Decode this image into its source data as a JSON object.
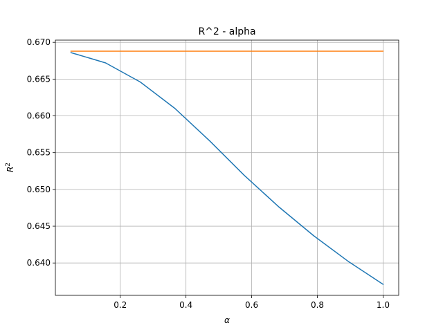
{
  "chart_data": {
    "type": "line",
    "title": "R^2 - alpha",
    "xlabel": "α",
    "ylabel_base": "R",
    "ylabel_sup": "2",
    "xlim": [
      0.0025,
      1.0475
    ],
    "ylim": [
      0.6356,
      0.6703
    ],
    "xticks": [
      0.2,
      0.4,
      0.6,
      0.8,
      1.0
    ],
    "xtick_labels": [
      "0.2",
      "0.4",
      "0.6",
      "0.8",
      "1.0"
    ],
    "yticks": [
      0.64,
      0.645,
      0.65,
      0.655,
      0.66,
      0.665,
      0.67
    ],
    "ytick_labels": [
      "0.640",
      "0.645",
      "0.650",
      "0.655",
      "0.660",
      "0.665",
      "0.670"
    ],
    "grid": true,
    "series": [
      {
        "color": "#1f77b4",
        "x": [
          0.05,
          0.1556,
          0.2611,
          0.3667,
          0.4722,
          0.5778,
          0.6833,
          0.7889,
          0.8944,
          1.0
        ],
        "y": [
          0.6686,
          0.6672,
          0.6646,
          0.661,
          0.6566,
          0.6519,
          0.6476,
          0.6437,
          0.6402,
          0.6371
        ]
      },
      {
        "color": "#ff7f0e",
        "x": [
          0.05,
          1.0
        ],
        "y": [
          0.6688,
          0.6688
        ]
      }
    ]
  }
}
